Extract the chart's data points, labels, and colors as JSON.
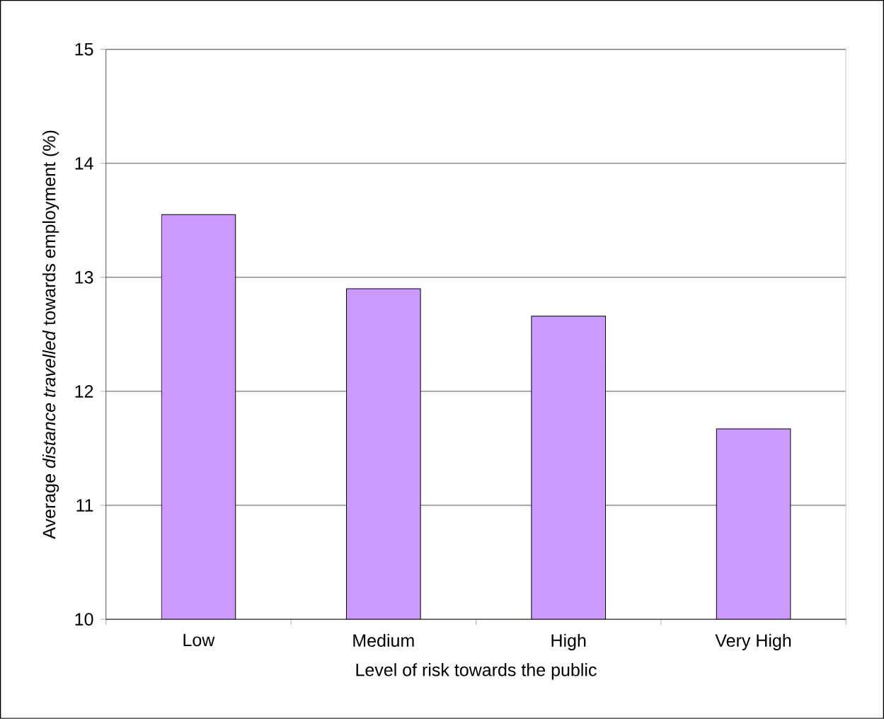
{
  "chart_data": {
    "type": "bar",
    "xlabel": "Level of risk towards the public",
    "ylabel": "Average *distance travelled* towards employment (%)",
    "categories": [
      "Low",
      "Medium",
      "High",
      "Very High"
    ],
    "values": [
      13.55,
      12.9,
      12.66,
      11.67
    ],
    "color": "#cc99ff",
    "ylim": [
      10,
      15
    ],
    "yticks": [
      10,
      11,
      12,
      13,
      14,
      15
    ],
    "grid": "y"
  }
}
